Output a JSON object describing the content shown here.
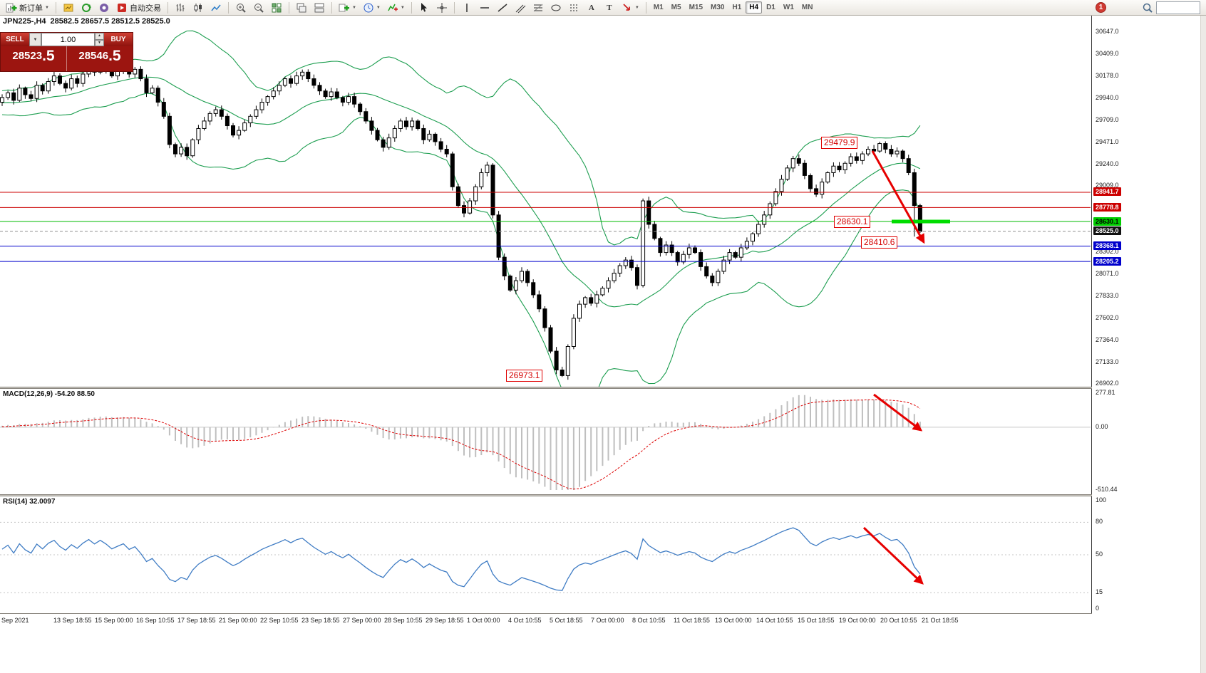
{
  "glyphs": {
    "caret_down": "▼",
    "spinner_up": "▲",
    "spinner_down": "▼",
    "text_tool": "A",
    "label_tool": "T"
  },
  "toolbar": {
    "new_order": "新订单",
    "autotrade": "自动交易",
    "timeframes": [
      "M1",
      "M5",
      "M15",
      "M30",
      "H1",
      "H4",
      "D1",
      "W1",
      "MN"
    ],
    "active_timeframe": "H4",
    "notification_badge": "1",
    "search_value": ""
  },
  "chart": {
    "symbol_title": "JPN225-,H4",
    "ohlc": "28582.5 28657.5 28512.5 28525.0",
    "trade_panel": {
      "sell_label": "SELL",
      "buy_label": "BUY",
      "volume": "1.00",
      "sell_price_main": "28523",
      "sell_price_pips": ".5",
      "buy_price_main": "28546",
      "buy_price_pips": ".5"
    },
    "axis": {
      "price_min": 26902.0,
      "price_max": 30647.0,
      "ticks": [
        "30647.0",
        "30409.0",
        "30178.0",
        "29940.0",
        "29709.0",
        "29471.0",
        "29240.0",
        "29009.0",
        "28302.0",
        "28071.0",
        "27833.0",
        "27602.0",
        "27364.0",
        "27133.0",
        "26902.0"
      ],
      "badges": [
        {
          "value": "28941.7",
          "bg": "#cc0000",
          "fg": "#ffffff"
        },
        {
          "value": "28778.8",
          "bg": "#cc0000",
          "fg": "#ffffff"
        },
        {
          "value": "28630.1",
          "bg": "#00cc00",
          "fg": "#000000"
        },
        {
          "value": "28525.0",
          "bg": "#111111",
          "fg": "#ffffff"
        },
        {
          "value": "28368.1",
          "bg": "#0000cc",
          "fg": "#ffffff"
        },
        {
          "value": "28205.2",
          "bg": "#0000cc",
          "fg": "#ffffff"
        }
      ]
    },
    "levels": {
      "red": [
        28941.7,
        28778.8
      ],
      "green": [
        28630.1
      ],
      "blue": [
        28368.1,
        28205.2
      ],
      "current": 28525.0,
      "green_segment_price": 28630.1
    },
    "annotations": [
      {
        "text": "29479.9"
      },
      {
        "text": "28630.1"
      },
      {
        "text": "28410.6"
      },
      {
        "text": "26973.1"
      }
    ]
  },
  "chart_data": {
    "type": "candlestick",
    "symbol": "JPN225-",
    "timeframe": "H4",
    "note_overlays": "Bollinger Bands (20,2) green; red/blue/green horizontal levels; red trend arrows",
    "closes": [
      29950,
      30000,
      29920,
      30050,
      29980,
      29940,
      30080,
      30020,
      30120,
      30180,
      30100,
      30050,
      30150,
      30100,
      30200,
      30280,
      30220,
      30300,
      30250,
      30180,
      30230,
      30280,
      30200,
      30250,
      30150,
      30000,
      30050,
      29900,
      29750,
      29450,
      29350,
      29420,
      29330,
      29500,
      29620,
      29700,
      29780,
      29820,
      29750,
      29650,
      29550,
      29600,
      29680,
      29750,
      29820,
      29900,
      29960,
      30020,
      30080,
      30150,
      30100,
      30180,
      30220,
      30150,
      30080,
      30020,
      29960,
      30010,
      29950,
      29900,
      29960,
      29880,
      29800,
      29700,
      29600,
      29500,
      29420,
      29520,
      29620,
      29700,
      29640,
      29700,
      29620,
      29500,
      29560,
      29480,
      29400,
      29350,
      29000,
      28800,
      28720,
      28850,
      29000,
      29150,
      29230,
      28700,
      28250,
      28050,
      27900,
      28000,
      28100,
      27980,
      27850,
      27700,
      27500,
      27250,
      27050,
      26990,
      27300,
      27600,
      27750,
      27820,
      27760,
      27850,
      27920,
      28000,
      28080,
      28160,
      28220,
      28140,
      27950,
      28850,
      28600,
      28450,
      28300,
      28380,
      28300,
      28200,
      28280,
      28350,
      28300,
      28150,
      28050,
      27980,
      28100,
      28220,
      28300,
      28250,
      28350,
      28420,
      28500,
      28600,
      28700,
      28820,
      28950,
      29080,
      29200,
      29300,
      29250,
      29120,
      28980,
      28920,
      29050,
      29150,
      29220,
      29180,
      29250,
      29320,
      29280,
      29350,
      29400,
      29380,
      29460,
      29400,
      29350,
      29380,
      29300,
      29150,
      28800,
      28525
    ],
    "bollinger": {
      "period": 20,
      "deviation": 2
    },
    "macd": {
      "fast": 12,
      "slow": 26,
      "signal": 9
    },
    "rsi": {
      "period": 14
    }
  },
  "macd_panel": {
    "label": "MACD(12,26,9) -54.20 88.50",
    "scale_max": "277.81",
    "scale_zero": "0.00",
    "scale_min": "-510.44"
  },
  "rsi_panel": {
    "label": "RSI(14) 32.0097",
    "scale": [
      "100",
      "80",
      "50",
      "15",
      "0"
    ],
    "levels": [
      80,
      50,
      15
    ]
  },
  "time_axis": [
    "Sep 2021",
    "13 Sep 18:55",
    "15 Sep 00:00",
    "16 Sep 10:55",
    "17 Sep 18:55",
    "21 Sep 00:00",
    "22 Sep 10:55",
    "23 Sep 18:55",
    "27 Sep 00:00",
    "28 Sep 10:55",
    "29 Sep 18:55",
    "1 Oct 00:00",
    "4 Oct 10:55",
    "5 Oct 18:55",
    "7 Oct 00:00",
    "8 Oct 10:55",
    "11 Oct 18:55",
    "13 Oct 00:00",
    "14 Oct 10:55",
    "15 Oct 18:55",
    "19 Oct 00:00",
    "20 Oct 10:55",
    "21 Oct 18:55"
  ]
}
